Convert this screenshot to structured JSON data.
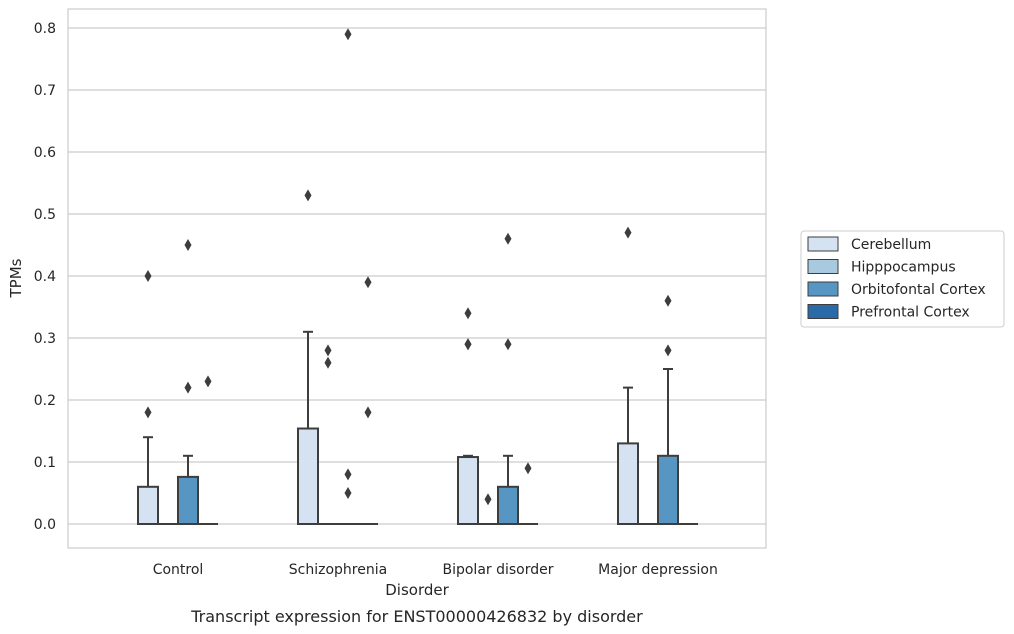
{
  "caption": "Transcript expression for ENST00000426832 by disorder",
  "chart_data": {
    "type": "box",
    "title": "",
    "xlabel": "Disorder",
    "ylabel": "TPMs",
    "ylim": [
      -0.04,
      0.83
    ],
    "yticks": [
      0.0,
      0.1,
      0.2,
      0.3,
      0.4,
      0.5,
      0.6,
      0.7,
      0.8
    ],
    "grid": true,
    "legend_position": "right",
    "categories": [
      "Control",
      "Schizophrenia",
      "Bipolar disorder",
      "Major depression"
    ],
    "series": [
      {
        "name": "Cerebellum",
        "color": "#d4e2f1",
        "boxes": [
          {
            "q1": 0.0,
            "median": 0.0,
            "q3": 0.06,
            "whisker_low": 0.0,
            "whisker_high": 0.14,
            "outliers": [
              0.18,
              0.4
            ]
          },
          {
            "q1": 0.0,
            "median": 0.0,
            "q3": 0.154,
            "whisker_low": 0.0,
            "whisker_high": 0.31,
            "outliers": [
              0.53
            ]
          },
          {
            "q1": 0.0,
            "median": 0.0,
            "q3": 0.108,
            "whisker_low": 0.0,
            "whisker_high": 0.11,
            "outliers": [
              0.29,
              0.29,
              0.34
            ]
          },
          {
            "q1": 0.0,
            "median": 0.0,
            "q3": 0.13,
            "whisker_low": 0.0,
            "whisker_high": 0.22,
            "outliers": [
              0.47
            ]
          }
        ]
      },
      {
        "name": "Hipppocampus",
        "color": "#a9c9e0",
        "boxes": [
          {
            "q1": 0.0,
            "median": 0.0,
            "q3": 0.0,
            "whisker_low": 0.0,
            "whisker_high": 0.0,
            "outliers": []
          },
          {
            "q1": 0.0,
            "median": 0.0,
            "q3": 0.0,
            "whisker_low": 0.0,
            "whisker_high": 0.0,
            "outliers": [
              0.26,
              0.28
            ]
          },
          {
            "q1": 0.0,
            "median": 0.0,
            "q3": 0.0,
            "whisker_low": 0.0,
            "whisker_high": 0.0,
            "outliers": [
              0.04
            ]
          },
          {
            "q1": 0.0,
            "median": 0.0,
            "q3": 0.0,
            "whisker_low": 0.0,
            "whisker_high": 0.0,
            "outliers": []
          }
        ]
      },
      {
        "name": "Orbitofontal Cortex",
        "color": "#5796c3",
        "boxes": [
          {
            "q1": 0.0,
            "median": 0.0,
            "q3": 0.076,
            "whisker_low": 0.0,
            "whisker_high": 0.11,
            "outliers": [
              0.22,
              0.45
            ]
          },
          {
            "q1": 0.0,
            "median": 0.0,
            "q3": 0.0,
            "whisker_low": 0.0,
            "whisker_high": 0.0,
            "outliers": [
              0.05,
              0.08,
              0.79
            ]
          },
          {
            "q1": 0.0,
            "median": 0.0,
            "q3": 0.06,
            "whisker_low": 0.0,
            "whisker_high": 0.11,
            "outliers": [
              0.29,
              0.46
            ]
          },
          {
            "q1": 0.0,
            "median": 0.0,
            "q3": 0.11,
            "whisker_low": 0.0,
            "whisker_high": 0.25,
            "outliers": [
              0.28,
              0.36
            ]
          }
        ]
      },
      {
        "name": "Prefrontal Cortex",
        "color": "#2b6aa8",
        "boxes": [
          {
            "q1": 0.0,
            "median": 0.0,
            "q3": 0.0,
            "whisker_low": 0.0,
            "whisker_high": 0.0,
            "outliers": [
              0.23
            ]
          },
          {
            "q1": 0.0,
            "median": 0.0,
            "q3": 0.0,
            "whisker_low": 0.0,
            "whisker_high": 0.0,
            "outliers": [
              0.18,
              0.39
            ]
          },
          {
            "q1": 0.0,
            "median": 0.0,
            "q3": 0.0,
            "whisker_low": 0.0,
            "whisker_high": 0.0,
            "outliers": [
              0.09
            ]
          },
          {
            "q1": 0.0,
            "median": 0.0,
            "q3": 0.0,
            "whisker_low": 0.0,
            "whisker_high": 0.0,
            "outliers": []
          }
        ]
      }
    ]
  }
}
